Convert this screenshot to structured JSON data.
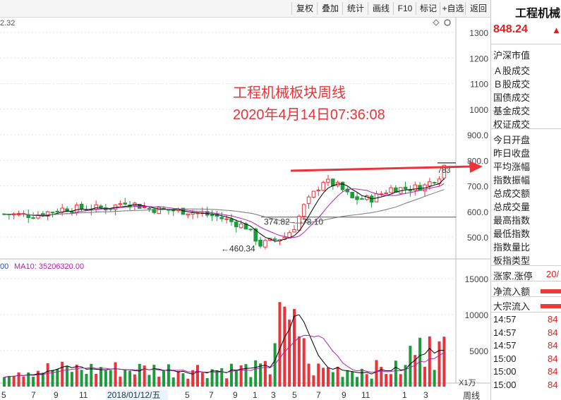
{
  "toolbar": {
    "buttons": [
      "复权",
      "叠加",
      "统计",
      "画线",
      "F10",
      "标记",
      "+自选",
      "返回"
    ]
  },
  "colors": {
    "up": "#e8343a",
    "down": "#1c9a3c",
    "ma5": "#000000",
    "ma10": "#b020b0",
    "ma20": "#777777",
    "annotation": "#e8343a"
  },
  "chart_data": [
    {
      "type": "candlestick",
      "period_label": "周线",
      "top_left_value": "2.32",
      "ylim": [
        420,
        1330
      ],
      "yticks": [
        500,
        600,
        700,
        800,
        900,
        1000,
        1100,
        1200,
        1300
      ],
      "ytick_labels": [
        "500.0",
        "600.0",
        "700.0",
        "800.0",
        "900.0",
        "1000",
        "1100",
        "1200",
        "1300"
      ],
      "current_price_label": "783",
      "x_labels": [
        "5",
        "7",
        "9",
        "11",
        "2018/01/12/五",
        "5",
        "7",
        "9",
        "1",
        "3",
        "5",
        "7",
        "9",
        "11",
        "1",
        "3"
      ],
      "annotations": [
        {
          "text": "工程机械板块周线",
          "color": "#e8343a"
        },
        {
          "text": "2020年4月14日07:36:08",
          "color": "#e8343a"
        },
        {
          "text": "←460.34"
        },
        {
          "text": "374.82 - 578.10"
        }
      ],
      "icons": [
        "diamond-icon",
        "gear-icon"
      ]
    },
    {
      "type": "bar",
      "legend_prefix": "00",
      "legend_ma10": "MA10: 35206320.00",
      "ylim": [
        0,
        17000
      ],
      "yticks": [
        5000,
        10000,
        15000
      ],
      "ytick_labels": [
        "5000",
        "10000",
        "15000"
      ],
      "unit_label": "X1万"
    }
  ],
  "sidebar": {
    "title": "工程机械",
    "price": "848.24",
    "arrow": "▲",
    "sections": [
      {
        "label": "沪深市值",
        "value": ""
      },
      {
        "label": "Ａ股成交",
        "value": ""
      },
      {
        "label": "Ｂ股成交",
        "value": ""
      },
      {
        "label": "国债成交",
        "value": ""
      },
      {
        "label": "基金成交",
        "value": ""
      },
      {
        "label": "权证成交",
        "value": ""
      },
      {
        "label": "今日开盘",
        "value": ""
      },
      {
        "label": "昨日收盘",
        "value": ""
      },
      {
        "label": "平均涨幅",
        "value": ""
      },
      {
        "label": "指数振幅",
        "value": ""
      },
      {
        "label": "总成交额",
        "value": ""
      },
      {
        "label": "总成交量",
        "value": ""
      },
      {
        "label": "最高指数",
        "value": ""
      },
      {
        "label": "最低指数",
        "value": ""
      },
      {
        "label": "指数量比",
        "value": ""
      },
      {
        "label": "板指类型",
        "value": ""
      },
      {
        "label": "涨家.涨停",
        "value": "20/"
      },
      {
        "label": "净流入额",
        "value": ""
      },
      {
        "label": "大宗流入",
        "value": ""
      }
    ],
    "ticks": [
      {
        "time": "14:57",
        "price": "84"
      },
      {
        "time": "14:57",
        "price": "84"
      },
      {
        "time": "14:57",
        "price": "84"
      },
      {
        "time": "15:00",
        "price": "84"
      },
      {
        "time": "15:00",
        "price": "84"
      },
      {
        "time": "15:00",
        "price": "84"
      }
    ]
  }
}
